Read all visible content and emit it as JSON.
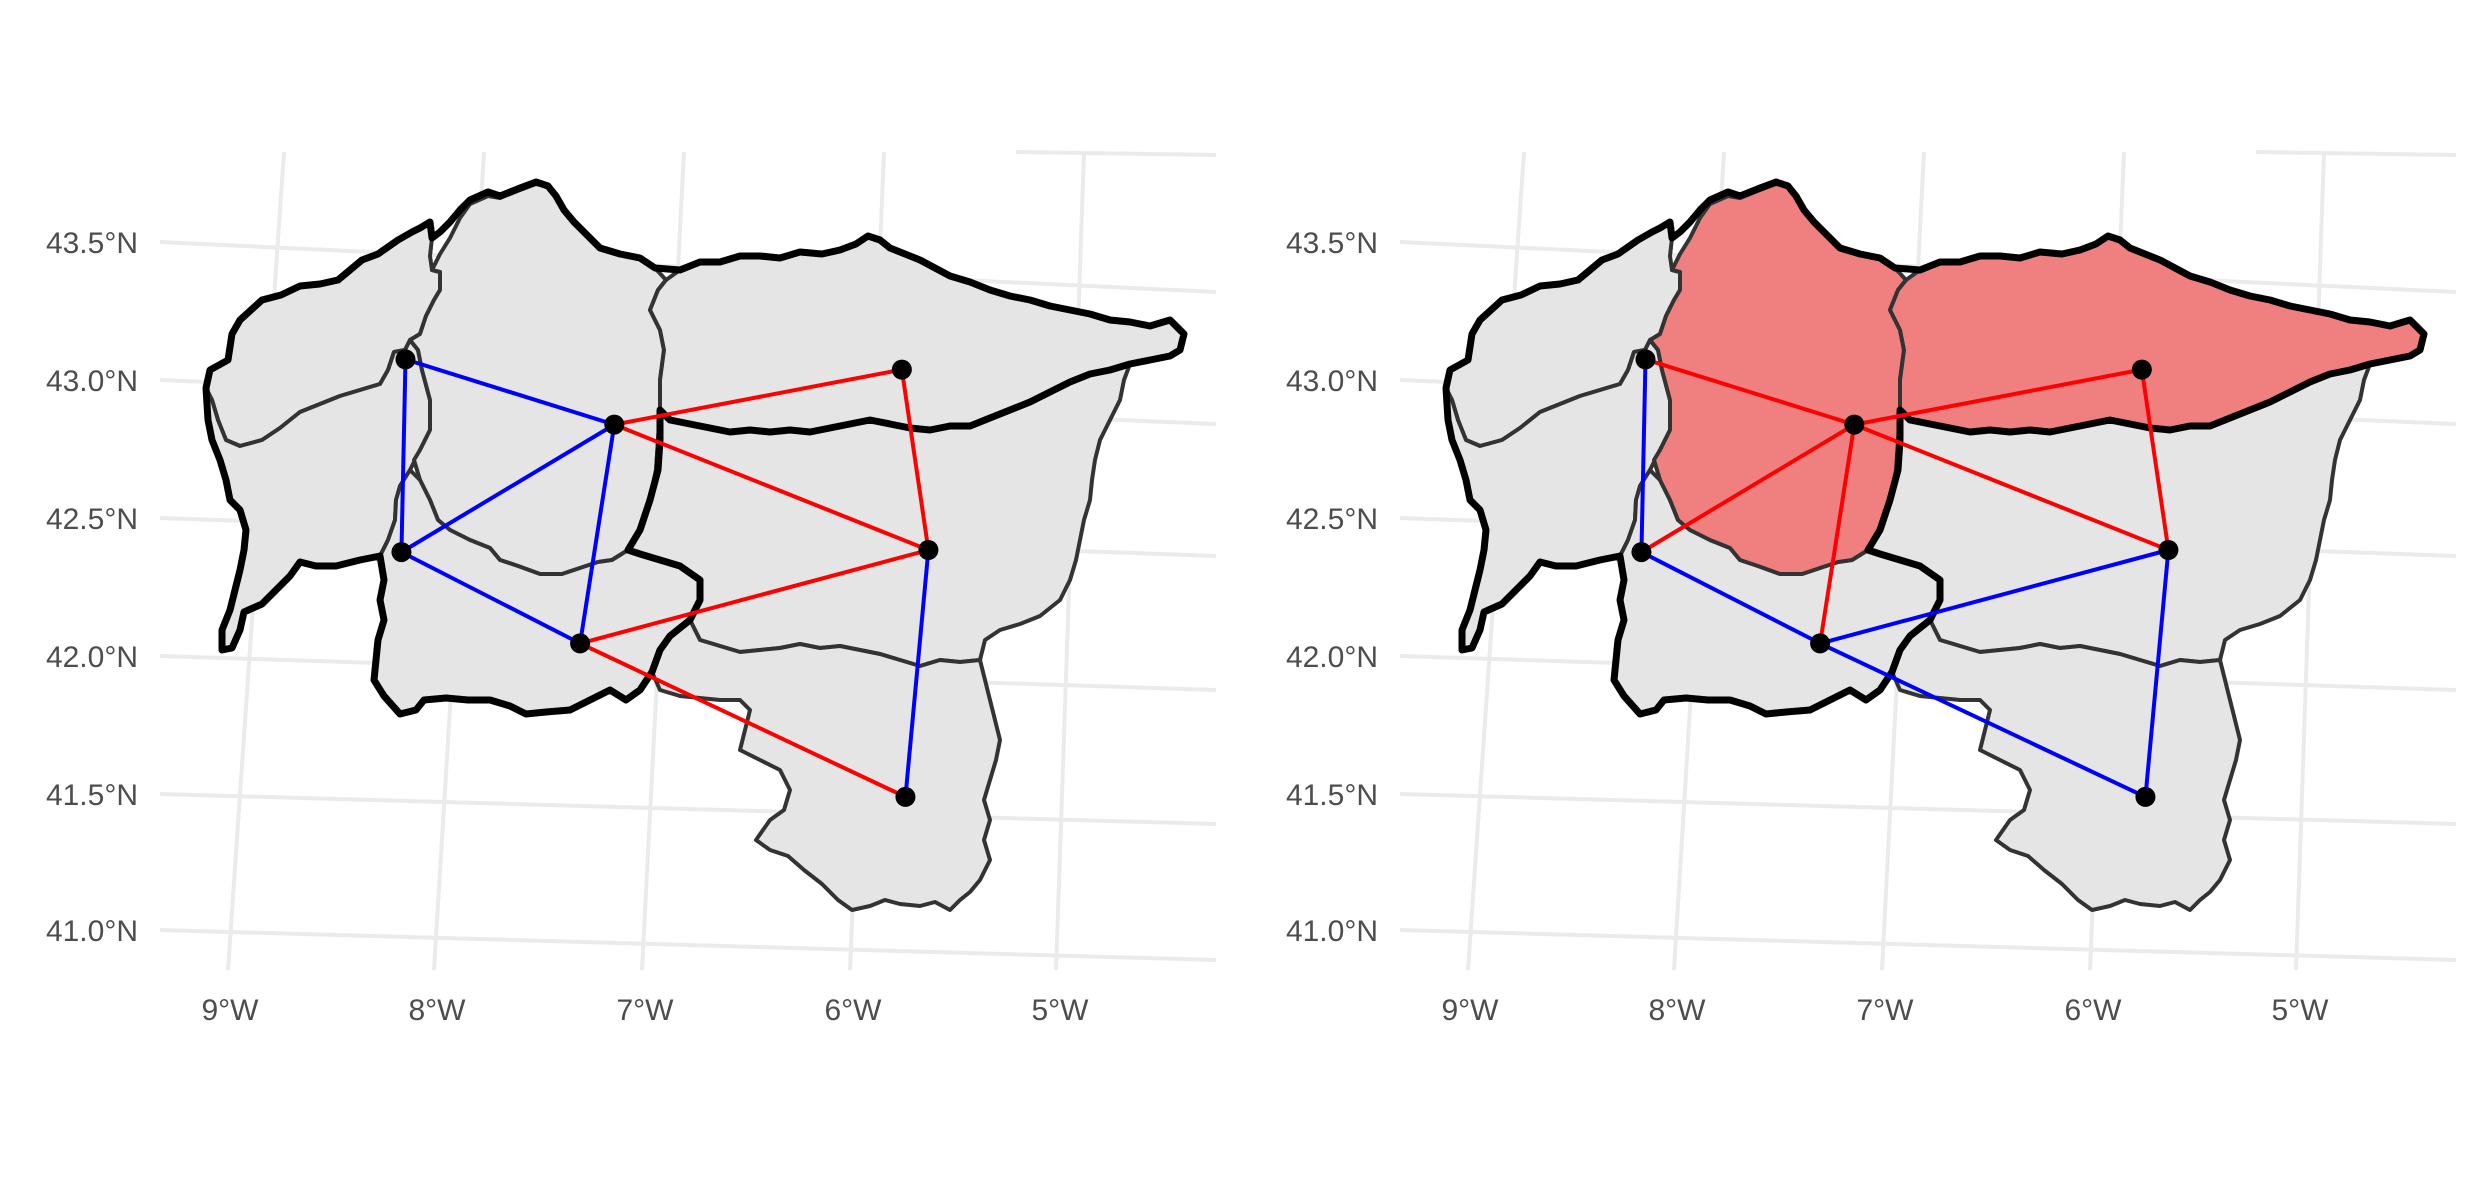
{
  "colors": {
    "background": "#ffffff",
    "grid": "#ebebeb",
    "region_fill": "#e5e5e5",
    "region_border": "#333333",
    "outline": "#000000",
    "highlight_fill": "#f08080",
    "edge_red": "#ff0000",
    "edge_blue": "#0000ff",
    "node": "#000000",
    "axis_text": "#4d4d4d"
  },
  "chart_data": [
    {
      "type": "map",
      "panel": "left",
      "y_ticks": [
        "43.5°N",
        "43.0°N",
        "42.5°N",
        "42.0°N",
        "41.5°N",
        "41.0°N"
      ],
      "x_ticks": [
        "9°W",
        "8°W",
        "7°W",
        "6°W",
        "5°W"
      ],
      "xlim": [
        -9.0,
        -4.5
      ],
      "ylim": [
        41.0,
        43.7
      ],
      "nodes": [
        {
          "id": "A",
          "lon": -8.3,
          "lat": 43.1
        },
        {
          "id": "B",
          "lon": -7.3,
          "lat": 42.9
        },
        {
          "id": "C",
          "lon": -5.9,
          "lat": 43.15
        },
        {
          "id": "D",
          "lon": -8.35,
          "lat": 42.4
        },
        {
          "id": "E",
          "lon": -5.8,
          "lat": 42.5
        },
        {
          "id": "F",
          "lon": -7.5,
          "lat": 42.1
        },
        {
          "id": "G",
          "lon": -5.95,
          "lat": 41.6
        }
      ],
      "edges": [
        {
          "from": "A",
          "to": "B",
          "color": "blue"
        },
        {
          "from": "A",
          "to": "D",
          "color": "blue"
        },
        {
          "from": "D",
          "to": "B",
          "color": "blue"
        },
        {
          "from": "D",
          "to": "F",
          "color": "blue"
        },
        {
          "from": "B",
          "to": "F",
          "color": "blue"
        },
        {
          "from": "E",
          "to": "G",
          "color": "blue"
        },
        {
          "from": "B",
          "to": "C",
          "color": "red"
        },
        {
          "from": "B",
          "to": "E",
          "color": "red"
        },
        {
          "from": "C",
          "to": "E",
          "color": "red"
        },
        {
          "from": "F",
          "to": "E",
          "color": "red"
        },
        {
          "from": "F",
          "to": "G",
          "color": "red"
        }
      ],
      "highlighted_regions": []
    },
    {
      "type": "map",
      "panel": "right",
      "y_ticks": [
        "43.5°N",
        "43.0°N",
        "42.5°N",
        "42.0°N",
        "41.5°N",
        "41.0°N"
      ],
      "x_ticks": [
        "9°W",
        "8°W",
        "7°W",
        "6°W",
        "5°W"
      ],
      "xlim": [
        -9.0,
        -4.5
      ],
      "ylim": [
        41.0,
        43.7
      ],
      "nodes": [
        {
          "id": "A",
          "lon": -8.3,
          "lat": 43.1
        },
        {
          "id": "B",
          "lon": -7.3,
          "lat": 42.9
        },
        {
          "id": "C",
          "lon": -5.9,
          "lat": 43.15
        },
        {
          "id": "D",
          "lon": -8.35,
          "lat": 42.4
        },
        {
          "id": "E",
          "lon": -5.8,
          "lat": 42.5
        },
        {
          "id": "F",
          "lon": -7.5,
          "lat": 42.1
        },
        {
          "id": "G",
          "lon": -5.95,
          "lat": 41.6
        }
      ],
      "edges": [
        {
          "from": "A",
          "to": "B",
          "color": "red"
        },
        {
          "from": "D",
          "to": "B",
          "color": "red"
        },
        {
          "from": "B",
          "to": "F",
          "color": "red"
        },
        {
          "from": "B",
          "to": "C",
          "color": "red"
        },
        {
          "from": "B",
          "to": "E",
          "color": "red"
        },
        {
          "from": "C",
          "to": "E",
          "color": "red"
        },
        {
          "from": "A",
          "to": "D",
          "color": "blue"
        },
        {
          "from": "D",
          "to": "F",
          "color": "blue"
        },
        {
          "from": "F",
          "to": "E",
          "color": "blue"
        },
        {
          "from": "F",
          "to": "G",
          "color": "blue"
        },
        {
          "from": "E",
          "to": "G",
          "color": "blue"
        }
      ],
      "highlighted_regions": [
        "Lugo",
        "Asturias"
      ]
    }
  ]
}
